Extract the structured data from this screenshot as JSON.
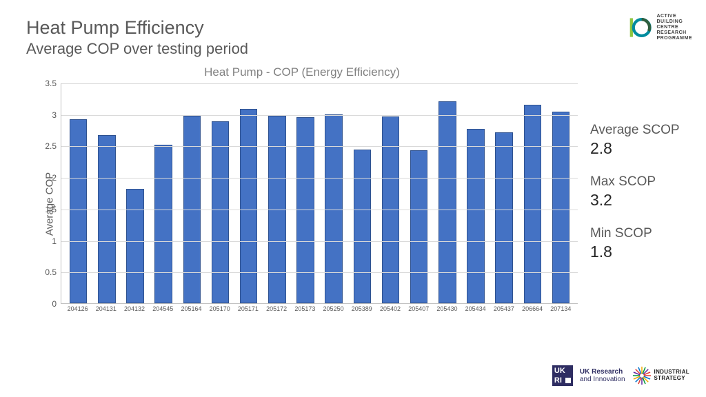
{
  "header": {
    "title": "Heat Pump Efficiency",
    "subtitle": "Average COP over testing period"
  },
  "top_logo": {
    "text_lines": [
      "ACTIVE",
      "BUILDING",
      "CENTRE",
      "RESEARCH",
      "PROGRAMME"
    ],
    "ring_outer": "#008c9e",
    "ring_inner": "#2e5e3e",
    "bar_color": "#8ec63f"
  },
  "chart": {
    "type": "bar",
    "title": "Heat Pump - COP (Energy Efficiency)",
    "ylabel": "Average COP",
    "ylim": [
      0,
      3.5
    ],
    "ytick_step": 0.5,
    "yticks": [
      "0",
      "0.5",
      "1",
      "1.5",
      "2",
      "2.5",
      "3",
      "3.5"
    ],
    "categories": [
      "204126",
      "204131",
      "204132",
      "204545",
      "205164",
      "205170",
      "205171",
      "205172",
      "205173",
      "205250",
      "205389",
      "205402",
      "205407",
      "205430",
      "205434",
      "205437",
      "206664",
      "207134"
    ],
    "values": [
      2.92,
      2.67,
      1.82,
      2.52,
      2.97,
      2.89,
      3.09,
      2.97,
      2.95,
      3.0,
      2.44,
      2.96,
      2.43,
      3.2,
      2.77,
      2.71,
      3.15,
      3.04
    ],
    "bar_color": "#4472c4",
    "bar_border": "#2f528f",
    "bar_width": 0.62,
    "background_color": "#ffffff",
    "grid_color": "#d9d9d9",
    "axis_color": "#bfbfbf",
    "title_fontsize": 17,
    "title_color": "#808080",
    "label_fontsize": 15,
    "tick_fontsize": 12,
    "xtick_fontsize": 9
  },
  "stats": {
    "avg_label": "Average SCOP",
    "avg_value": "2.8",
    "max_label": "Max SCOP",
    "max_value": "3.2",
    "min_label": "Min SCOP",
    "min_value": "1.8"
  },
  "footer": {
    "ukri_line1": "UK Research",
    "ukri_line2": "and Innovation",
    "ukri_bg": "#2e2d62",
    "ind_line1": "INDUSTRIAL",
    "ind_line2": "STRATEGY",
    "ind_colors": [
      "#e03c31",
      "#0072ce",
      "#f2a900",
      "#009639",
      "#5f259f"
    ]
  }
}
